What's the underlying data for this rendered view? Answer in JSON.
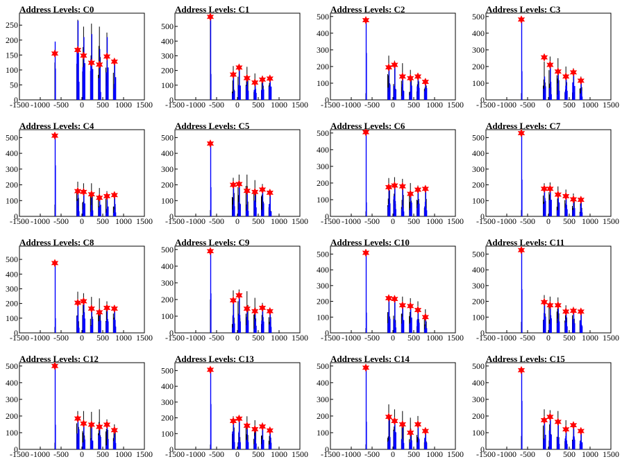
{
  "page": {
    "background": "#ffffff"
  },
  "colors": {
    "frame": "#000000",
    "hist_black": "#000000",
    "hist_blue": "#0000ff",
    "marker": "#ff0000"
  },
  "chart_data": [
    {
      "type": "bar",
      "title": "Address Levels: C0",
      "xlim": [
        -1500,
        1500
      ],
      "ylim": [
        0,
        290
      ],
      "xticks": [
        "-1500",
        "-1000",
        "-500",
        "0",
        "500",
        "1000",
        "1500"
      ],
      "yticks": [
        0,
        50,
        100,
        150,
        200,
        250
      ],
      "peaks": [
        {
          "x": -650,
          "y": 155
        },
        {
          "x": -100,
          "y": 167
        },
        {
          "x": 40,
          "y": 148
        },
        {
          "x": 230,
          "y": 124
        },
        {
          "x": 420,
          "y": 118
        },
        {
          "x": 600,
          "y": 145
        },
        {
          "x": 780,
          "y": 128
        }
      ],
      "black_max": [
        125,
        268,
        245,
        255,
        245,
        225,
        135
      ],
      "blue_max": [
        195,
        265,
        210,
        220,
        170,
        210,
        125
      ]
    },
    {
      "type": "bar",
      "title": "Address Levels: C1",
      "xlim": [
        -1500,
        1500
      ],
      "ylim": [
        0,
        590
      ],
      "xticks": [
        "-1500",
        "-1000",
        "-500",
        "0",
        "500",
        "1000",
        "1500"
      ],
      "yticks": [
        0,
        100,
        200,
        300,
        400,
        500
      ],
      "peaks": [
        {
          "x": -650,
          "y": 565
        },
        {
          "x": -100,
          "y": 172
        },
        {
          "x": 40,
          "y": 220
        },
        {
          "x": 230,
          "y": 148
        },
        {
          "x": 420,
          "y": 118
        },
        {
          "x": 600,
          "y": 138
        },
        {
          "x": 780,
          "y": 145
        }
      ],
      "black_max": [
        560,
        230,
        235,
        225,
        180,
        165,
        160
      ],
      "blue_max": [
        570,
        180,
        220,
        150,
        120,
        140,
        145
      ]
    },
    {
      "type": "bar",
      "title": "Address Levels: C2",
      "xlim": [
        -1500,
        1500
      ],
      "ylim": [
        0,
        520
      ],
      "xticks": [
        "-1500",
        "-1000",
        "-500",
        "0",
        "500",
        "1000",
        "1500"
      ],
      "yticks": [
        0,
        100,
        200,
        300,
        400,
        500
      ],
      "peaks": [
        {
          "x": -650,
          "y": 478
        },
        {
          "x": -100,
          "y": 195
        },
        {
          "x": 40,
          "y": 210
        },
        {
          "x": 230,
          "y": 140
        },
        {
          "x": 420,
          "y": 130
        },
        {
          "x": 600,
          "y": 140
        },
        {
          "x": 780,
          "y": 108
        }
      ],
      "black_max": [
        40,
        265,
        235,
        220,
        180,
        160,
        120
      ],
      "blue_max": [
        485,
        200,
        210,
        145,
        135,
        145,
        110
      ]
    },
    {
      "type": "bar",
      "title": "Address Levels: C3",
      "xlim": [
        -1500,
        1500
      ],
      "ylim": [
        0,
        520
      ],
      "xticks": [
        "-1500",
        "-1000",
        "-500",
        "0",
        "500",
        "1000",
        "1500"
      ],
      "yticks": [
        0,
        100,
        200,
        300,
        400,
        500
      ],
      "peaks": [
        {
          "x": -650,
          "y": 482
        },
        {
          "x": -100,
          "y": 255
        },
        {
          "x": 40,
          "y": 210
        },
        {
          "x": 230,
          "y": 170
        },
        {
          "x": 420,
          "y": 140
        },
        {
          "x": 600,
          "y": 165
        },
        {
          "x": 780,
          "y": 115
        }
      ],
      "black_max": [
        40,
        230,
        260,
        250,
        200,
        190,
        140
      ],
      "blue_max": [
        490,
        140,
        215,
        175,
        145,
        170,
        120
      ]
    },
    {
      "type": "bar",
      "title": "Address Levels: C4",
      "xlim": [
        -1500,
        1500
      ],
      "ylim": [
        0,
        550
      ],
      "xticks": [
        "-1500",
        "-1000",
        "-500",
        "0",
        "500",
        "1000",
        "1500"
      ],
      "yticks": [
        0,
        100,
        200,
        300,
        400,
        500
      ],
      "peaks": [
        {
          "x": -650,
          "y": 512
        },
        {
          "x": -100,
          "y": 160
        },
        {
          "x": 40,
          "y": 155
        },
        {
          "x": 230,
          "y": 140
        },
        {
          "x": 420,
          "y": 118
        },
        {
          "x": 600,
          "y": 128
        },
        {
          "x": 780,
          "y": 135
        }
      ],
      "black_max": [
        75,
        220,
        210,
        210,
        180,
        160,
        150
      ],
      "blue_max": [
        520,
        165,
        160,
        145,
        120,
        130,
        140
      ]
    },
    {
      "type": "bar",
      "title": "Address Levels: C5",
      "xlim": [
        -1500,
        1500
      ],
      "ylim": [
        0,
        550
      ],
      "xticks": [
        "-1500",
        "-1000",
        "-500",
        "0",
        "500",
        "1000",
        "1500"
      ],
      "yticks": [
        0,
        100,
        200,
        300,
        400,
        500
      ],
      "peaks": [
        {
          "x": -650,
          "y": 462
        },
        {
          "x": -100,
          "y": 200
        },
        {
          "x": 40,
          "y": 205
        },
        {
          "x": 230,
          "y": 162
        },
        {
          "x": 420,
          "y": 155
        },
        {
          "x": 600,
          "y": 170
        },
        {
          "x": 780,
          "y": 150
        }
      ],
      "black_max": [
        40,
        245,
        265,
        265,
        230,
        205,
        165
      ],
      "blue_max": [
        470,
        205,
        210,
        165,
        160,
        175,
        155
      ]
    },
    {
      "type": "bar",
      "title": "Address Levels: C6",
      "xlim": [
        -1500,
        1500
      ],
      "ylim": [
        0,
        520
      ],
      "xticks": [
        "-1500",
        "-1000",
        "-500",
        "0",
        "500",
        "1000",
        "1500"
      ],
      "yticks": [
        0,
        100,
        200,
        300,
        400,
        500
      ],
      "peaks": [
        {
          "x": -650,
          "y": 505
        },
        {
          "x": -100,
          "y": 175
        },
        {
          "x": 40,
          "y": 185
        },
        {
          "x": 230,
          "y": 180
        },
        {
          "x": 420,
          "y": 135
        },
        {
          "x": 600,
          "y": 160
        },
        {
          "x": 780,
          "y": 165
        }
      ],
      "black_max": [
        30,
        230,
        235,
        225,
        200,
        185,
        175
      ],
      "blue_max": [
        510,
        180,
        190,
        185,
        140,
        165,
        170
      ]
    },
    {
      "type": "bar",
      "title": "Address Levels: C7",
      "xlim": [
        -1500,
        1500
      ],
      "ylim": [
        0,
        550
      ],
      "xticks": [
        "-1500",
        "-1000",
        "-500",
        "0",
        "500",
        "1000",
        "1500"
      ],
      "yticks": [
        0,
        100,
        200,
        300,
        400,
        500
      ],
      "peaks": [
        {
          "x": -650,
          "y": 528
        },
        {
          "x": -100,
          "y": 175
        },
        {
          "x": 40,
          "y": 175
        },
        {
          "x": 230,
          "y": 138
        },
        {
          "x": 420,
          "y": 128
        },
        {
          "x": 600,
          "y": 108
        },
        {
          "x": 780,
          "y": 105
        }
      ],
      "black_max": [
        40,
        210,
        215,
        190,
        170,
        145,
        125
      ],
      "blue_max": [
        535,
        180,
        180,
        145,
        135,
        115,
        110
      ]
    },
    {
      "type": "bar",
      "title": "Address Levels: C8",
      "xlim": [
        -1500,
        1500
      ],
      "ylim": [
        0,
        590
      ],
      "xticks": [
        "-1500",
        "-1000",
        "-500",
        "0",
        "500",
        "1000",
        "1500"
      ],
      "yticks": [
        0,
        100,
        200,
        300,
        400,
        500
      ],
      "peaks": [
        {
          "x": -650,
          "y": 475
        },
        {
          "x": -100,
          "y": 205
        },
        {
          "x": 40,
          "y": 215
        },
        {
          "x": 230,
          "y": 165
        },
        {
          "x": 420,
          "y": 140
        },
        {
          "x": 600,
          "y": 170
        },
        {
          "x": 780,
          "y": 165
        }
      ],
      "black_max": [
        40,
        280,
        270,
        245,
        235,
        215,
        185
      ],
      "blue_max": [
        480,
        210,
        220,
        170,
        145,
        175,
        170
      ]
    },
    {
      "type": "bar",
      "title": "Address Levels: C9",
      "xlim": [
        -1500,
        1500
      ],
      "ylim": [
        0,
        520
      ],
      "xticks": [
        "-1500",
        "-1000",
        "-500",
        "0",
        "500",
        "1000",
        "1500"
      ],
      "yticks": [
        0,
        100,
        200,
        300,
        400,
        500
      ],
      "peaks": [
        {
          "x": -650,
          "y": 490
        },
        {
          "x": -100,
          "y": 195
        },
        {
          "x": 40,
          "y": 225
        },
        {
          "x": 230,
          "y": 145
        },
        {
          "x": 420,
          "y": 130
        },
        {
          "x": 600,
          "y": 150
        },
        {
          "x": 780,
          "y": 130
        }
      ],
      "black_max": [
        200,
        255,
        260,
        250,
        210,
        180,
        145
      ],
      "blue_max": [
        495,
        200,
        230,
        150,
        135,
        155,
        135
      ]
    },
    {
      "type": "bar",
      "title": "Address Levels: C10",
      "xlim": [
        -1500,
        1500
      ],
      "ylim": [
        0,
        550
      ],
      "xticks": [
        "-1500",
        "-1000",
        "-500",
        "0",
        "500",
        "1000",
        "1500"
      ],
      "yticks": [
        0,
        100,
        200,
        300,
        400,
        500
      ],
      "peaks": [
        {
          "x": -650,
          "y": 508
        },
        {
          "x": -100,
          "y": 220
        },
        {
          "x": 40,
          "y": 215
        },
        {
          "x": 230,
          "y": 175
        },
        {
          "x": 420,
          "y": 170
        },
        {
          "x": 600,
          "y": 145
        },
        {
          "x": 780,
          "y": 100
        }
      ],
      "black_max": [
        30,
        240,
        235,
        230,
        220,
        200,
        150
      ],
      "blue_max": [
        515,
        225,
        220,
        180,
        175,
        150,
        105
      ]
    },
    {
      "type": "bar",
      "title": "Address Levels: C11",
      "xlim": [
        -1500,
        1500
      ],
      "ylim": [
        0,
        550
      ],
      "xticks": [
        "-1500",
        "-1000",
        "-500",
        "0",
        "500",
        "1000",
        "1500"
      ],
      "yticks": [
        0,
        100,
        200,
        300,
        400,
        500
      ],
      "peaks": [
        {
          "x": -650,
          "y": 525
        },
        {
          "x": -100,
          "y": 195
        },
        {
          "x": 40,
          "y": 175
        },
        {
          "x": 230,
          "y": 175
        },
        {
          "x": 420,
          "y": 135
        },
        {
          "x": 600,
          "y": 140
        },
        {
          "x": 780,
          "y": 135
        }
      ],
      "black_max": [
        70,
        240,
        230,
        225,
        175,
        165,
        150
      ],
      "blue_max": [
        530,
        200,
        180,
        180,
        140,
        145,
        140
      ]
    },
    {
      "type": "bar",
      "title": "Address Levels: C12",
      "xlim": [
        -1500,
        1500
      ],
      "ylim": [
        0,
        520
      ],
      "xticks": [
        "-1500",
        "-1000",
        "-500",
        "0",
        "500",
        "1000",
        "1500"
      ],
      "yticks": [
        0,
        100,
        200,
        300,
        400,
        500
      ],
      "peaks": [
        {
          "x": -650,
          "y": 500
        },
        {
          "x": -100,
          "y": 185
        },
        {
          "x": 40,
          "y": 155
        },
        {
          "x": 230,
          "y": 148
        },
        {
          "x": 420,
          "y": 135
        },
        {
          "x": 600,
          "y": 148
        },
        {
          "x": 780,
          "y": 115
        }
      ],
      "black_max": [
        40,
        230,
        230,
        225,
        240,
        180,
        150
      ],
      "blue_max": [
        505,
        190,
        160,
        150,
        140,
        150,
        120
      ]
    },
    {
      "type": "bar",
      "title": "Address Levels: C13",
      "xlim": [
        -1500,
        1500
      ],
      "ylim": [
        0,
        550
      ],
      "xticks": [
        "-1500",
        "-1000",
        "-500",
        "0",
        "500",
        "1000",
        "1500"
      ],
      "yticks": [
        0,
        100,
        200,
        300,
        400,
        500
      ],
      "peaks": [
        {
          "x": -650,
          "y": 505
        },
        {
          "x": -100,
          "y": 180
        },
        {
          "x": 40,
          "y": 195
        },
        {
          "x": 230,
          "y": 150
        },
        {
          "x": 420,
          "y": 128
        },
        {
          "x": 600,
          "y": 145
        },
        {
          "x": 780,
          "y": 120
        }
      ],
      "black_max": [
        30,
        210,
        210,
        210,
        185,
        170,
        140
      ],
      "blue_max": [
        510,
        185,
        200,
        155,
        135,
        150,
        125
      ]
    },
    {
      "type": "bar",
      "title": "Address Levels: C14",
      "xlim": [
        -1500,
        1500
      ],
      "ylim": [
        0,
        520
      ],
      "xticks": [
        "-1500",
        "-1000",
        "-500",
        "0",
        "500",
        "1000",
        "1500"
      ],
      "yticks": [
        0,
        100,
        200,
        300,
        400,
        500
      ],
      "peaks": [
        {
          "x": -650,
          "y": 490
        },
        {
          "x": -100,
          "y": 195
        },
        {
          "x": 40,
          "y": 170
        },
        {
          "x": 230,
          "y": 150
        },
        {
          "x": 420,
          "y": 100
        },
        {
          "x": 600,
          "y": 150
        },
        {
          "x": 780,
          "y": 110
        }
      ],
      "black_max": [
        30,
        270,
        240,
        230,
        190,
        200,
        130
      ],
      "blue_max": [
        495,
        200,
        175,
        155,
        105,
        155,
        115
      ]
    },
    {
      "type": "bar",
      "title": "Address Levels: C15",
      "xlim": [
        -1500,
        1500
      ],
      "ylim": [
        0,
        520
      ],
      "xticks": [
        "-1500",
        "-1000",
        "-500",
        "0",
        "500",
        "1000",
        "1500"
      ],
      "yticks": [
        0,
        100,
        200,
        300,
        400,
        500
      ],
      "peaks": [
        {
          "x": -650,
          "y": 475
        },
        {
          "x": -100,
          "y": 175
        },
        {
          "x": 40,
          "y": 195
        },
        {
          "x": 230,
          "y": 165
        },
        {
          "x": 420,
          "y": 120
        },
        {
          "x": 600,
          "y": 145
        },
        {
          "x": 780,
          "y": 110
        }
      ],
      "black_max": [
        80,
        240,
        235,
        230,
        175,
        165,
        130
      ],
      "blue_max": [
        480,
        180,
        200,
        170,
        125,
        150,
        115
      ]
    }
  ]
}
